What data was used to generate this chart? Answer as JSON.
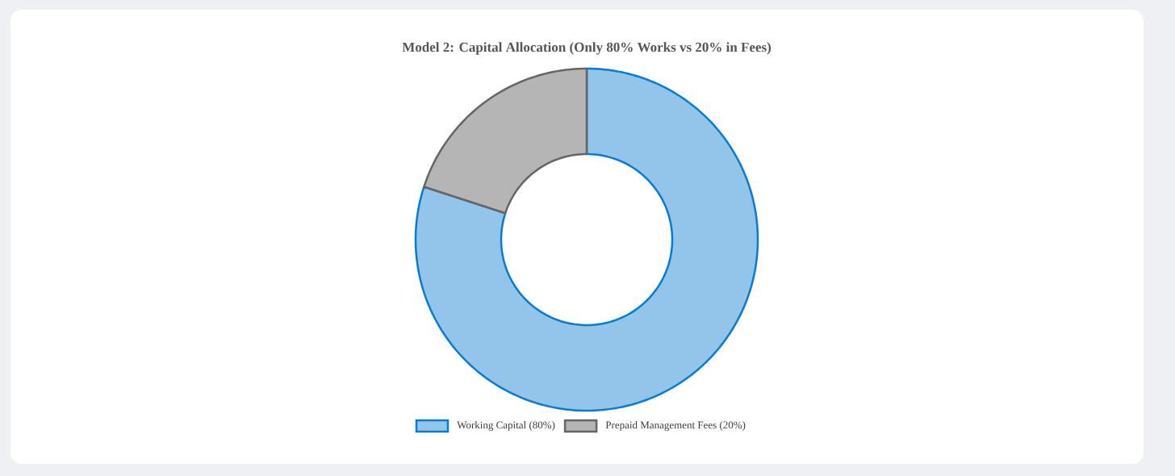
{
  "chart_data": {
    "type": "donut",
    "title": "Model 2: Capital Allocation (Only 80% Works vs 20% in Fees)",
    "categories": [
      "Working Capital (80%)",
      "Prepaid Management Fees (20%)"
    ],
    "values": [
      80,
      20
    ],
    "colors": [
      "#93c4e9",
      "#b5b5b5"
    ],
    "legend": "bottom"
  }
}
